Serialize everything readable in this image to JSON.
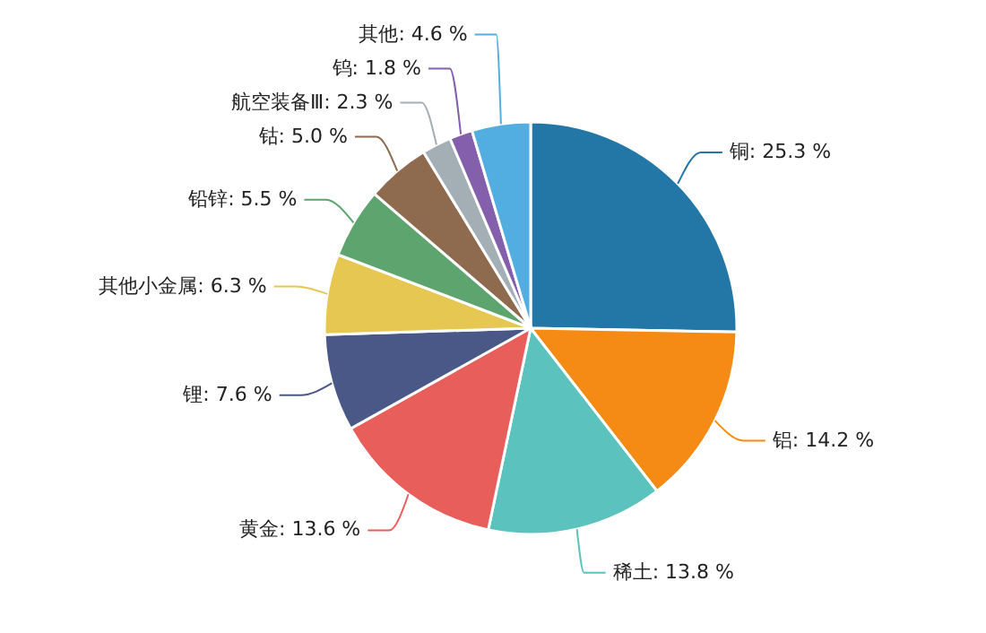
{
  "chart_data": {
    "type": "pie",
    "categories": [
      "铜",
      "铝",
      "稀土",
      "黄金",
      "锂",
      "其他小金属",
      "铅锌",
      "钴",
      "航空装备Ⅲ",
      "钨",
      "其他"
    ],
    "values": [
      25.3,
      14.2,
      13.8,
      13.6,
      7.6,
      6.3,
      5.5,
      5.0,
      2.3,
      1.8,
      4.6
    ],
    "colors": [
      "#2277a6",
      "#f58a14",
      "#5bc2bd",
      "#e85e5b",
      "#4a5888",
      "#e6c752",
      "#5ea46e",
      "#8e6a4e",
      "#a3afb5",
      "#8460ac",
      "#52aee0"
    ],
    "value_labels": [
      "25.3 %",
      "14.2 %",
      "13.8 %",
      "13.6 %",
      "7.6 %",
      "6.3 %",
      "5.5 %",
      "5.0 %",
      "2.3 %",
      "1.8 %",
      "4.6 %"
    ]
  }
}
